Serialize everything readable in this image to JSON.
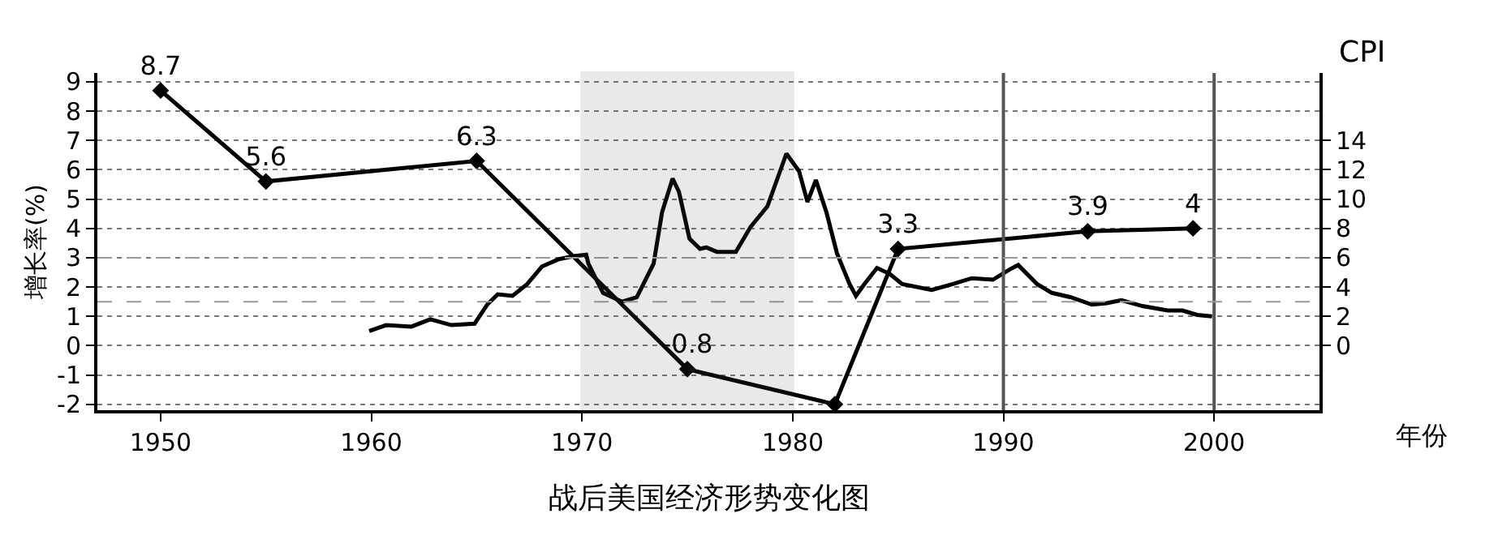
{
  "chart_data": {
    "type": "line",
    "title": "战后美国经济形势变化图",
    "xlabel": "年份",
    "ylabel": "增长率(%)",
    "y2label": "CPI",
    "xlim": [
      1947,
      2005
    ],
    "xticks": [
      1950,
      1960,
      1970,
      1980,
      1990,
      2000
    ],
    "ylim": [
      -2.2,
      9.3
    ],
    "yticks": [
      -2,
      -1,
      0,
      1,
      2,
      3,
      4,
      5,
      6,
      7,
      8,
      9
    ],
    "y2lim": [
      -4.4,
      18.6
    ],
    "y2ticks": [
      0,
      2,
      4,
      6,
      8,
      10,
      12,
      14
    ],
    "grid": "y",
    "series": [
      {
        "color": "#000000",
        "marker": "diamond",
        "x": [
          1950,
          1955,
          1965,
          1975,
          1982,
          1985,
          1994,
          1999
        ],
        "values": [
          8.7,
          5.6,
          6.3,
          -0.8,
          -2,
          3.3,
          3.9,
          4
        ],
        "value_labels": [
          "8.7",
          "5.6",
          "6.3",
          "-0.8",
          null,
          "3.3",
          "3.9",
          "4"
        ]
      },
      {
        "color": "#000000",
        "marker": "none",
        "axis": "y2",
        "x": [
          1959.9,
          1960.7,
          1961.9,
          1962.8,
          1963.8,
          1964.9,
          1965.5,
          1966,
          1966.7,
          1967.4,
          1968.1,
          1968.9,
          1969.6,
          1970.2,
          1970.3,
          1971,
          1971.9,
          1972.6,
          1973.4,
          1973.8,
          1974.3,
          1974.6,
          1975.1,
          1975.6,
          1975.9,
          1976.4,
          1977.3,
          1978,
          1978.8,
          1979.7,
          1980.3,
          1980.7,
          1981.1,
          1981.6,
          1982.1,
          1982.7,
          1983,
          1983.4,
          1984,
          1984.6,
          1985.2,
          1986.6,
          1987.6,
          1988.5,
          1989.5,
          1990.3,
          1990.7,
          1991.6,
          1992.3,
          1993.2,
          1994.2,
          1994.9,
          1995.6,
          1996.6,
          1997.8,
          1998.5,
          1999.2,
          1999.9
        ],
        "values": [
          1.0,
          1.4,
          1.3,
          1.8,
          1.4,
          1.5,
          2.8,
          3.5,
          3.4,
          4.2,
          5.4,
          5.9,
          6.1,
          6.2,
          5.6,
          3.6,
          3.0,
          3.3,
          5.6,
          9.1,
          11.4,
          10.5,
          7.3,
          6.6,
          6.7,
          6.4,
          6.4,
          8.1,
          9.5,
          13.1,
          11.9,
          9.8,
          11.3,
          9.1,
          6.3,
          4.2,
          3.4,
          4.2,
          5.3,
          4.9,
          4.2,
          3.8,
          4.2,
          4.6,
          4.5,
          5.2,
          5.5,
          4.2,
          3.6,
          3.3,
          2.8,
          2.9,
          3.1,
          2.7,
          2.4,
          2.4,
          2.1,
          2.0
        ]
      }
    ],
    "ref_lines": [
      {
        "axis": "x",
        "value": 1990,
        "color": "#555555",
        "line_style": "solid"
      },
      {
        "axis": "x",
        "value": 2000,
        "color": "#555555",
        "line_style": "solid"
      },
      {
        "axis": "y",
        "value": 3,
        "color": "#999999",
        "line_style": "dashed"
      },
      {
        "axis": "y2",
        "value": 3,
        "color": "#999999",
        "line_style": "dashed"
      }
    ],
    "bands": [
      {
        "axis": "x",
        "from": 1970,
        "to": 1980,
        "color": "#555555"
      }
    ]
  }
}
